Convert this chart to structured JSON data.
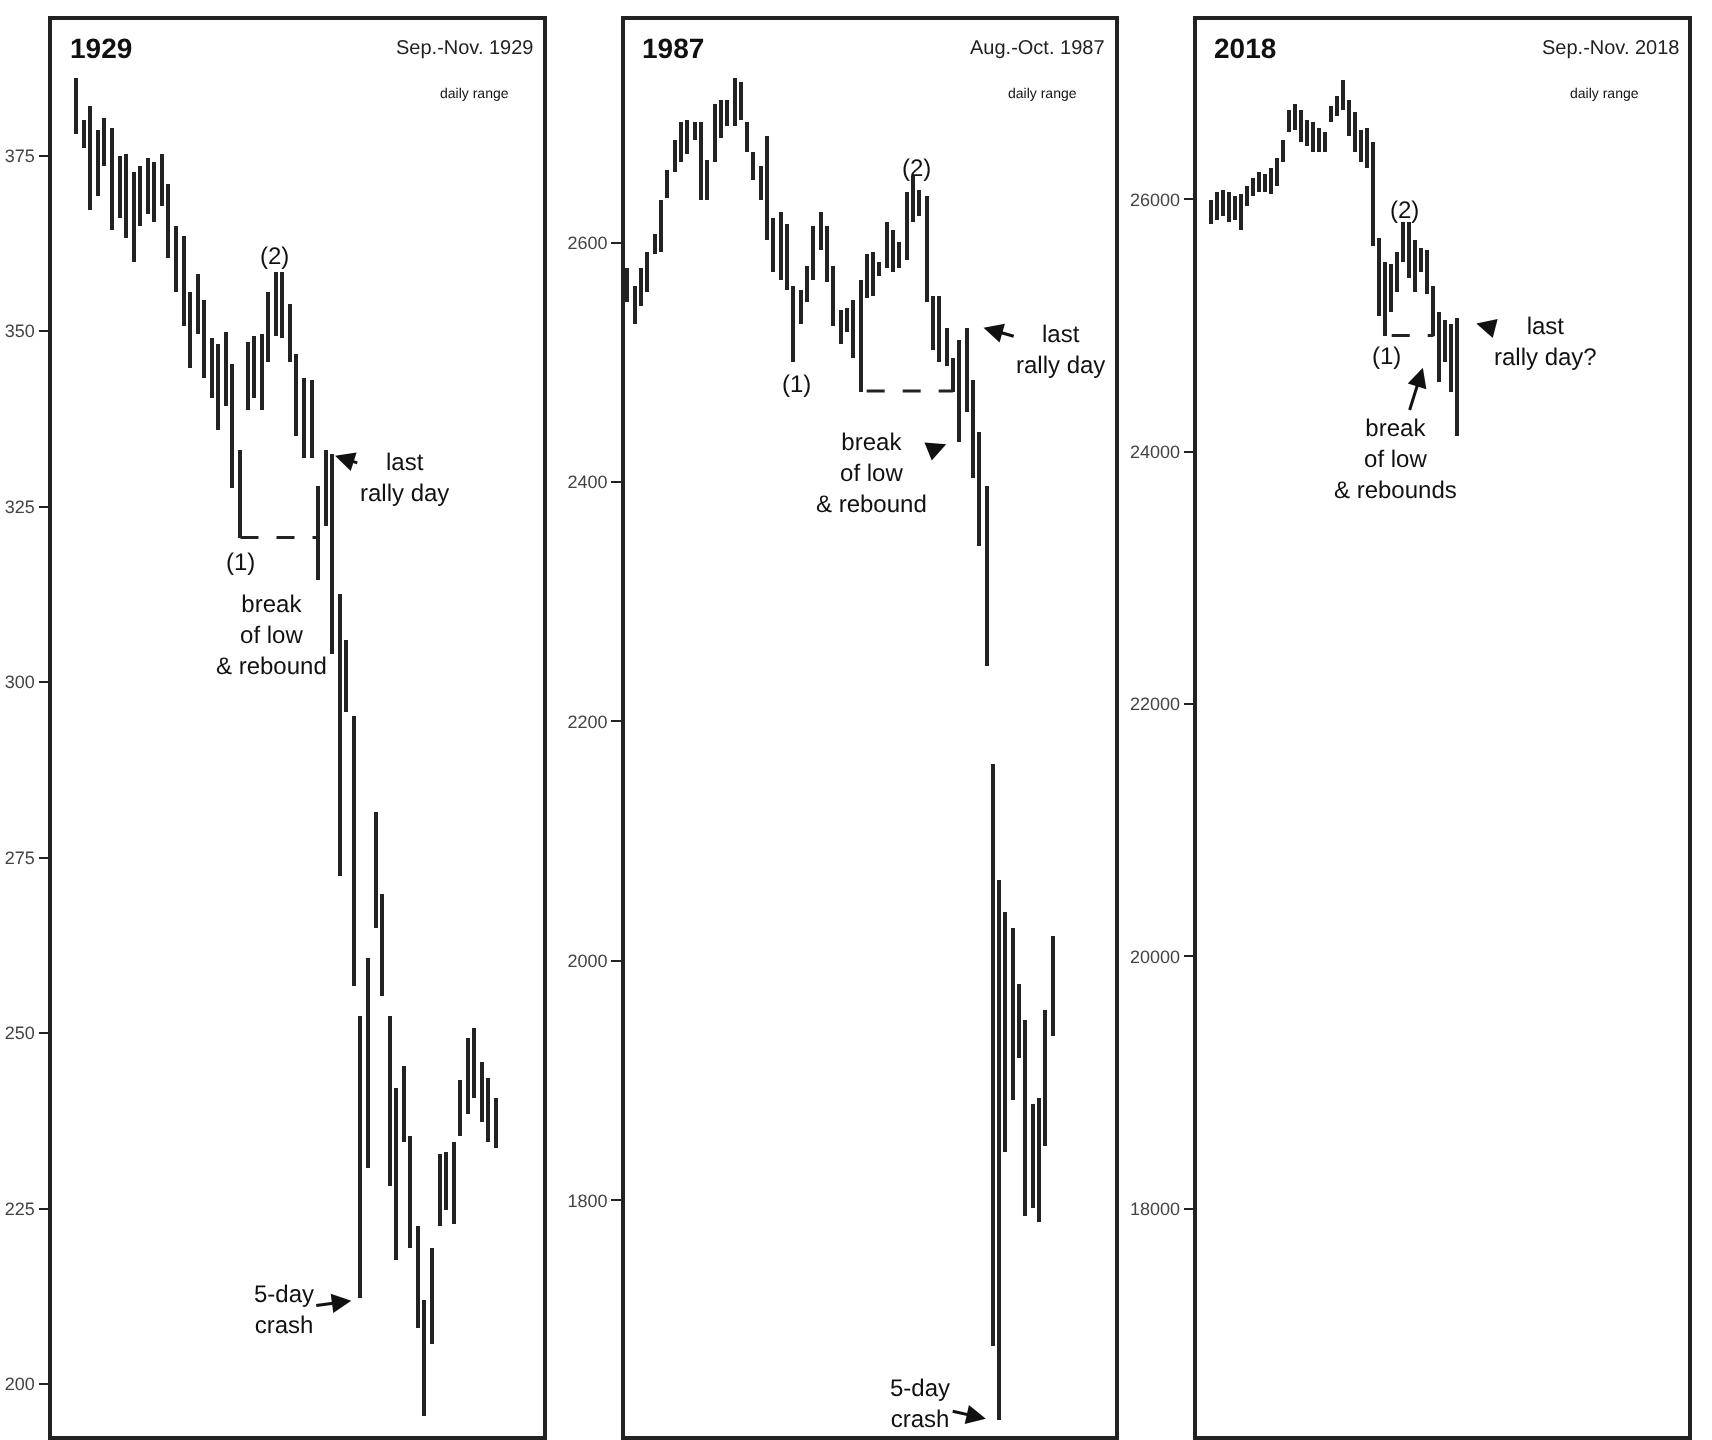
{
  "chart_data": [
    {
      "type": "bar",
      "title": "1929",
      "subtitle": "Sep.-Nov. 1929",
      "tick_labels": "y",
      "ylim": [
        192.6,
        394.3
      ],
      "yticks": [
        200,
        225,
        250,
        275,
        300,
        325,
        350,
        375
      ],
      "annotations": [
        "daily range",
        "(1)",
        "(2)",
        "last\nrally day",
        "break\nof low\n& rebound",
        "5-day\ncrash"
      ],
      "categories": [
        null,
        null,
        null,
        null,
        null,
        null,
        null,
        null,
        null,
        null,
        null,
        null,
        null,
        null,
        null,
        null,
        null,
        null,
        null,
        null,
        null,
        null,
        null,
        null,
        null,
        null,
        null,
        null,
        null,
        null,
        null,
        null,
        null,
        null,
        null,
        null,
        null,
        null,
        null,
        null,
        null,
        null,
        null,
        null,
        null,
        null,
        null,
        null,
        null,
        null,
        null,
        null,
        null,
        null,
        null,
        null,
        null,
        null,
        null,
        null,
        null,
        null,
        null,
        null,
        null,
        null,
        null,
        null,
        null
      ],
      "series": [
        {
          "color": "#222222",
          "base": [
            null,
            null,
            null,
            378.2,
            376.1,
            367.1,
            369.2,
            373.5,
            364.3,
            366.1,
            363.3,
            359.7,
            365.0,
            366.7,
            365.6,
            367.8,
            360.4,
            355.5,
            350.8,
            344.8,
            349.6,
            343.2,
            340.5,
            336.0,
            339.4,
            327.7,
            320.6,
            338.8,
            340.6,
            338.7,
            345.5,
            349.3,
            348.9,
            345.5,
            335.1,
            332.0,
            332.0,
            314.6,
            322.1,
            303.9,
            272.4,
            295.7,
            256.8,
            212.3,
            230.8,
            264.9,
            255.4,
            228.1,
            217.7,
            234.6,
            219.3,
            208.0,
            195.4,
            205.7,
            222.4,
            224.8,
            222.9,
            235.2,
            238.5,
            240.7,
            237.3,
            234.5,
            233.5,
            null,
            null,
            null,
            null,
            null,
            null
          ],
          "values": [
            null,
            null,
            null,
            7.8,
            4.0,
            14.9,
            9.5,
            6.8,
            14.7,
            8.8,
            11.9,
            13.0,
            8.5,
            8.0,
            8.4,
            7.3,
            10.6,
            9.5,
            12.7,
            10.7,
            8.4,
            11.3,
            8.6,
            12.2,
            10.6,
            17.6,
            12.5,
            9.6,
            8.7,
            10.9,
            10.0,
            9.2,
            9.4,
            8.4,
            11.7,
            11.2,
            11.0,
            13.4,
            10.9,
            28.6,
            40.2,
            10.4,
            38.4,
            40.0,
            30.0,
            16.5,
            14.3,
            24.2,
            24.4,
            10.6,
            15.9,
            14.4,
            16.5,
            13.7,
            10.3,
            8.3,
            11.6,
            8.1,
            10.9,
            9.9,
            8.6,
            9.2,
            7.2,
            null,
            null,
            null,
            null,
            null,
            null
          ]
        },
        {
          "type": "line",
          "color": "#222222",
          "line_style": "dashed",
          "values": [
            null,
            null,
            null,
            null,
            null,
            null,
            null,
            null,
            null,
            null,
            null,
            null,
            null,
            null,
            null,
            null,
            null,
            null,
            null,
            null,
            null,
            null,
            null,
            null,
            null,
            null,
            320.6,
            null,
            null,
            null,
            null,
            null,
            null,
            null,
            null,
            null,
            null,
            320.6,
            null,
            null,
            null,
            null,
            null,
            null,
            null,
            null,
            null,
            null,
            null,
            null,
            null,
            null,
            null,
            null,
            null,
            null,
            null,
            null,
            null,
            null,
            null,
            null,
            null,
            null,
            null,
            null,
            null,
            null,
            null
          ]
        }
      ]
    },
    {
      "type": "bar",
      "title": "1987",
      "subtitle": "Aug.-Oct. 1987",
      "tick_labels": "y",
      "ylim": [
        1603,
        2786
      ],
      "yticks": [
        1800,
        2000,
        2200,
        2400,
        2600
      ],
      "annotations": [
        "daily range",
        "(1)",
        "(2)",
        "last\nrally day",
        "break\nof low\n& rebound",
        "5-day\ncrash"
      ],
      "categories": [
        null,
        null,
        null,
        null,
        null,
        null,
        null,
        null,
        null,
        null,
        null,
        null,
        null,
        null,
        null,
        null,
        null,
        null,
        null,
        null,
        null,
        null,
        null,
        null,
        null,
        null,
        null,
        null,
        null,
        null,
        null,
        null,
        null,
        null,
        null,
        null,
        null,
        null,
        null,
        null,
        null,
        null,
        null,
        null,
        null,
        null,
        null,
        null,
        null,
        null,
        null,
        null,
        null,
        null,
        null,
        null,
        null,
        null,
        null,
        null,
        null,
        null,
        null,
        null,
        null,
        null,
        null,
        null,
        null,
        null,
        null,
        null,
        null,
        null
      ],
      "series": [
        {
          "color": "#222222",
          "base": [
            2550,
            2532,
            2547,
            2558,
            2590,
            2592,
            2637,
            2659,
            2668,
            2674,
            2686,
            2636,
            2636,
            2667,
            2688,
            2698,
            2698,
            2703,
            2675,
            2653,
            2636,
            2603,
            2575,
            2569,
            2561,
            2500,
            2532,
            2550,
            2569,
            2594,
            2567,
            2531,
            2515,
            2525,
            2503,
            2476,
            2553,
            2556,
            2572,
            2578,
            2575,
            2578,
            2586,
            2617,
            2622,
            2550,
            2511,
            2500,
            2497,
            2476,
            2433,
            2458,
            2403,
            2346,
            2247,
            1678,
            1617,
            1841,
            1883,
            1918,
            1786,
            1793,
            1781,
            1846,
            1937,
            null,
            null,
            null,
            null,
            null,
            null,
            null,
            null,
            null
          ],
          "values": [
            28,
            32,
            31,
            35,
            17,
            44,
            24,
            27,
            32,
            29,
            15,
            65,
            33,
            48,
            32,
            21,
            39,
            31,
            26,
            22,
            28,
            86,
            46,
            56,
            54,
            63,
            29,
            31,
            45,
            32,
            47,
            50,
            29,
            21,
            49,
            92,
            38,
            37,
            11,
            39,
            36,
            22,
            56,
            38,
            22,
            89,
            45,
            56,
            32,
            28,
            86,
            71,
            82,
            95,
            150,
            486,
            450,
            200,
            145,
            63,
            165,
            88,
            104,
            113,
            83,
            null,
            null,
            null,
            null,
            null,
            null,
            null,
            null,
            null
          ]
        },
        {
          "type": "line",
          "color": "#222222",
          "line_style": "dashed",
          "values": [
            null,
            null,
            null,
            null,
            null,
            null,
            null,
            null,
            null,
            null,
            null,
            null,
            null,
            null,
            null,
            null,
            null,
            null,
            null,
            null,
            null,
            null,
            null,
            null,
            null,
            null,
            null,
            null,
            null,
            null,
            null,
            null,
            null,
            null,
            null,
            null,
            2476,
            null,
            null,
            null,
            null,
            null,
            null,
            null,
            null,
            null,
            null,
            null,
            null,
            2476,
            null,
            null,
            null,
            null,
            null,
            null,
            null,
            null,
            null,
            null,
            null,
            null,
            null,
            null,
            null,
            null,
            null,
            null,
            null,
            null,
            null,
            null,
            null,
            null
          ]
        }
      ]
    },
    {
      "type": "bar",
      "title": "2018",
      "subtitle": "Sep.-Nov. 2018",
      "tick_labels": "y",
      "ylim": [
        16200,
        27420
      ],
      "yticks": [
        18000,
        20000,
        22000,
        24000,
        26000
      ],
      "annotations": [
        "daily range",
        "(1)",
        "(2)",
        "last\nrally day?",
        "break\nof low\n& rebounds"
      ],
      "categories": [
        null,
        null,
        null,
        null,
        null,
        null,
        null,
        null,
        null,
        null,
        null,
        null,
        null,
        null,
        null,
        null,
        null,
        null,
        null,
        null,
        null,
        null,
        null,
        null,
        null,
        null,
        null,
        null,
        null,
        null,
        null,
        null,
        null,
        null,
        null,
        null,
        null,
        null,
        null,
        null,
        null,
        null,
        null,
        null,
        null,
        null,
        null,
        null,
        null,
        null,
        null,
        null,
        null,
        null,
        null,
        null,
        null,
        null,
        null,
        null,
        null,
        null,
        null,
        null,
        null,
        null,
        null,
        null,
        null,
        null,
        null,
        null,
        null,
        null,
        null,
        null,
        null,
        null,
        null,
        null,
        null,
        null
      ],
      "series": [
        {
          "color": "#222222",
          "base": [
            null,
            null,
            25800,
            25840,
            25870,
            25820,
            25840,
            25760,
            25940,
            26030,
            26050,
            26050,
            26040,
            26110,
            26290,
            26530,
            26550,
            26460,
            26420,
            26370,
            26370,
            26380,
            26610,
            26660,
            26710,
            26500,
            26370,
            26290,
            26240,
            25630,
            25080,
            24920,
            25110,
            25260,
            25500,
            25370,
            25260,
            25420,
            25250,
            24920,
            24550,
            24710,
            24470,
            24130,
            null,
            null,
            null,
            null,
            null,
            null,
            null,
            null,
            null,
            null,
            null,
            null,
            null,
            null,
            null,
            null,
            null,
            null,
            null,
            null,
            null,
            null,
            null,
            null,
            null,
            null,
            null,
            null,
            null,
            null,
            null,
            null,
            null,
            null,
            null,
            null,
            null,
            null
          ],
          "values": [
            null,
            null,
            190,
            210,
            210,
            230,
            180,
            280,
            170,
            140,
            160,
            150,
            200,
            220,
            180,
            180,
            210,
            250,
            210,
            240,
            200,
            160,
            130,
            160,
            240,
            290,
            320,
            260,
            320,
            820,
            620,
            580,
            380,
            320,
            320,
            450,
            420,
            200,
            340,
            400,
            550,
            340,
            540,
            930,
            null,
            null,
            null,
            null,
            null,
            null,
            null,
            null,
            null,
            null,
            null,
            null,
            null,
            null,
            null,
            null,
            null,
            null,
            null,
            null,
            null,
            null,
            null,
            null,
            null,
            null,
            null,
            null,
            null,
            null,
            null,
            null,
            null,
            null,
            null,
            null,
            null,
            null
          ]
        },
        {
          "type": "line",
          "color": "#222222",
          "line_style": "dashed",
          "values": [
            null,
            null,
            null,
            null,
            null,
            null,
            null,
            null,
            null,
            null,
            null,
            null,
            null,
            null,
            null,
            null,
            null,
            null,
            null,
            null,
            null,
            null,
            null,
            null,
            null,
            null,
            null,
            null,
            null,
            null,
            null,
            null,
            24920,
            null,
            null,
            null,
            null,
            null,
            null,
            24920,
            null,
            null,
            null,
            null,
            null,
            null,
            null,
            null,
            null,
            null,
            null,
            null,
            null,
            null,
            null,
            null,
            null,
            null,
            null,
            null,
            null,
            null,
            null,
            null,
            null,
            null,
            null,
            null,
            null,
            null,
            null,
            null,
            null,
            null,
            null,
            null,
            null,
            null,
            null,
            null,
            null,
            null
          ]
        }
      ]
    }
  ]
}
